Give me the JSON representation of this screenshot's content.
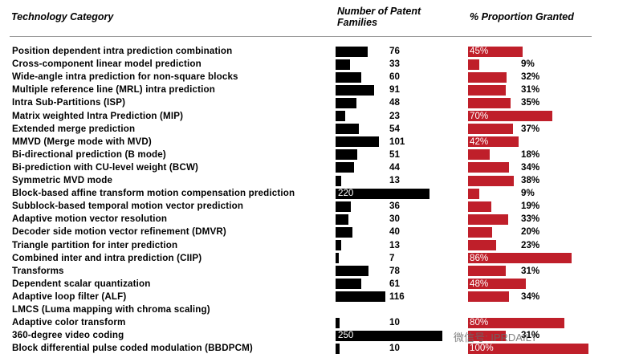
{
  "chart_data": {
    "type": "table",
    "headers": {
      "category": "Technology Category",
      "count": "Number of Patent Families",
      "granted": "% Proportion Granted"
    },
    "rows": [
      {
        "category": "Position dependent intra prediction combination",
        "count": 76,
        "count_label": "76",
        "granted": 45,
        "granted_label": "45%"
      },
      {
        "category": "Cross-component linear model prediction",
        "count": 33,
        "count_label": "33",
        "granted": 9,
        "granted_label": "9%"
      },
      {
        "category": "Wide-angle intra prediction for non-square blocks",
        "count": 60,
        "count_label": "60",
        "granted": 32,
        "granted_label": "32%"
      },
      {
        "category": "Multiple reference line (MRL) intra prediction",
        "count": 91,
        "count_label": "91",
        "granted": 31,
        "granted_label": "31%"
      },
      {
        "category": "Intra Sub-Partitions (ISP)",
        "count": 48,
        "count_label": "48",
        "granted": 35,
        "granted_label": "35%"
      },
      {
        "category": "Matrix weighted Intra Prediction (MIP)",
        "count": 23,
        "count_label": "23",
        "granted": 70,
        "granted_label": "70%"
      },
      {
        "category": "Extended merge prediction",
        "count": 54,
        "count_label": "54",
        "granted": 37,
        "granted_label": "37%"
      },
      {
        "category": "MMVD (Merge mode with MVD)",
        "count": 101,
        "count_label": "101",
        "granted": 42,
        "granted_label": "42%"
      },
      {
        "category": "Bi-directional prediction (B mode)",
        "count": 51,
        "count_label": "51",
        "granted": 18,
        "granted_label": "18%"
      },
      {
        "category": "Bi-prediction with CU-level weight (BCW)",
        "count": 44,
        "count_label": "44",
        "granted": 34,
        "granted_label": "34%"
      },
      {
        "category": "Symmetric MVD mode",
        "count": 13,
        "count_label": "13",
        "granted": 38,
        "granted_label": "38%"
      },
      {
        "category": "Block-based affine transform motion compensation prediction",
        "count": 220,
        "count_label": "220",
        "granted": 9,
        "granted_label": "9%"
      },
      {
        "category": "Subblock-based temporal motion vector prediction",
        "count": 36,
        "count_label": "36",
        "granted": 19,
        "granted_label": "19%"
      },
      {
        "category": "Adaptive motion vector resolution",
        "count": 30,
        "count_label": "30",
        "granted": 33,
        "granted_label": "33%"
      },
      {
        "category": "Decoder side motion vector refinement (DMVR)",
        "count": 40,
        "count_label": "40",
        "granted": 20,
        "granted_label": "20%"
      },
      {
        "category": "Triangle partition for inter prediction",
        "count": 13,
        "count_label": "13",
        "granted": 23,
        "granted_label": "23%"
      },
      {
        "category": "Combined inter and intra prediction (CIIP)",
        "count": 7,
        "count_label": "7",
        "granted": 86,
        "granted_label": "86%"
      },
      {
        "category": "Transforms",
        "count": 78,
        "count_label": "78",
        "granted": 31,
        "granted_label": "31%"
      },
      {
        "category": "Dependent scalar quantization",
        "count": 61,
        "count_label": "61",
        "granted": 48,
        "granted_label": "48%"
      },
      {
        "category": "Adaptive loop filter (ALF)",
        "count": 116,
        "count_label": "116",
        "granted": 34,
        "granted_label": "34%"
      },
      {
        "category": "LMCS (Luma mapping with chroma scaling)",
        "count": null,
        "count_label": "",
        "granted": null,
        "granted_label": ""
      },
      {
        "category": "Adaptive color transform",
        "count": 10,
        "count_label": "10",
        "granted": 80,
        "granted_label": "80%"
      },
      {
        "category": "360-degree video coding",
        "count": 250,
        "count_label": "250",
        "granted": 31,
        "granted_label": "31%"
      },
      {
        "category": "Block differential pulse coded modulation (BBDPCM)",
        "count": 10,
        "count_label": "10",
        "granted": 100,
        "granted_label": "100%"
      }
    ],
    "count_max": 250,
    "granted_max": 100,
    "bar_colors": {
      "count": "#000000",
      "granted": "#bf1f2a"
    }
  },
  "watermark": "微信号: IPRDAILY"
}
